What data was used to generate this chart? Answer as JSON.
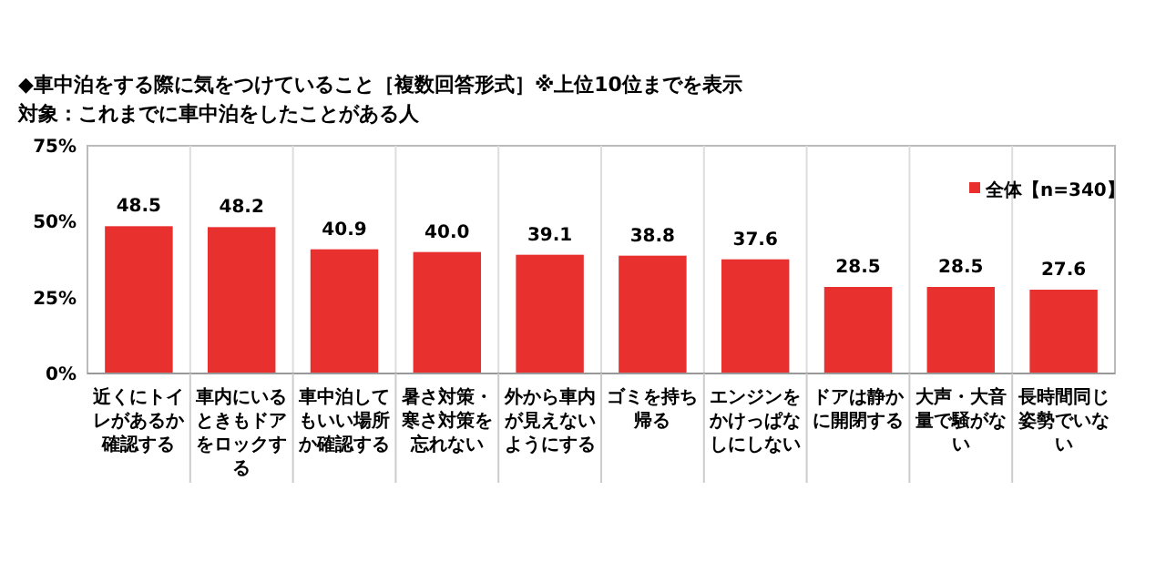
{
  "chart_data": {
    "type": "bar",
    "title": "◆車中泊をする際に気をつけていること［複数回答形式］※上位10位までを表示",
    "subtitle": "対象：これまでに車中泊をしたことがある人",
    "categories": [
      "近くにトイレがあるか確認する",
      "車内にいるときもドアをロックする",
      "車中泊してもいい場所か確認する",
      "暑さ対策・寒さ対策を忘れない",
      "外から車内が見えないようにする",
      "ゴミを持ち帰る",
      "エンジンをかけっぱなしにしない",
      "ドアは静かに開閉する",
      "大声・大音量で騒がない",
      "長時間同じ姿勢でいない"
    ],
    "series": [
      {
        "name": "全体【n=340】",
        "color": "#e8312f",
        "values": [
          48.5,
          48.2,
          40.9,
          40.0,
          39.1,
          38.8,
          37.6,
          28.5,
          28.5,
          27.6
        ]
      }
    ],
    "value_labels": [
      "48.5",
      "48.2",
      "40.9",
      "40.0",
      "39.1",
      "38.8",
      "37.6",
      "28.5",
      "28.5",
      "27.6"
    ],
    "ylim": [
      0,
      75
    ],
    "yticks": [
      {
        "value": 0,
        "label": "0%"
      },
      {
        "value": 25,
        "label": "25%"
      },
      {
        "value": 50,
        "label": "50%"
      },
      {
        "value": 75,
        "label": "75%"
      }
    ],
    "grid": "x",
    "legend": "top right"
  }
}
